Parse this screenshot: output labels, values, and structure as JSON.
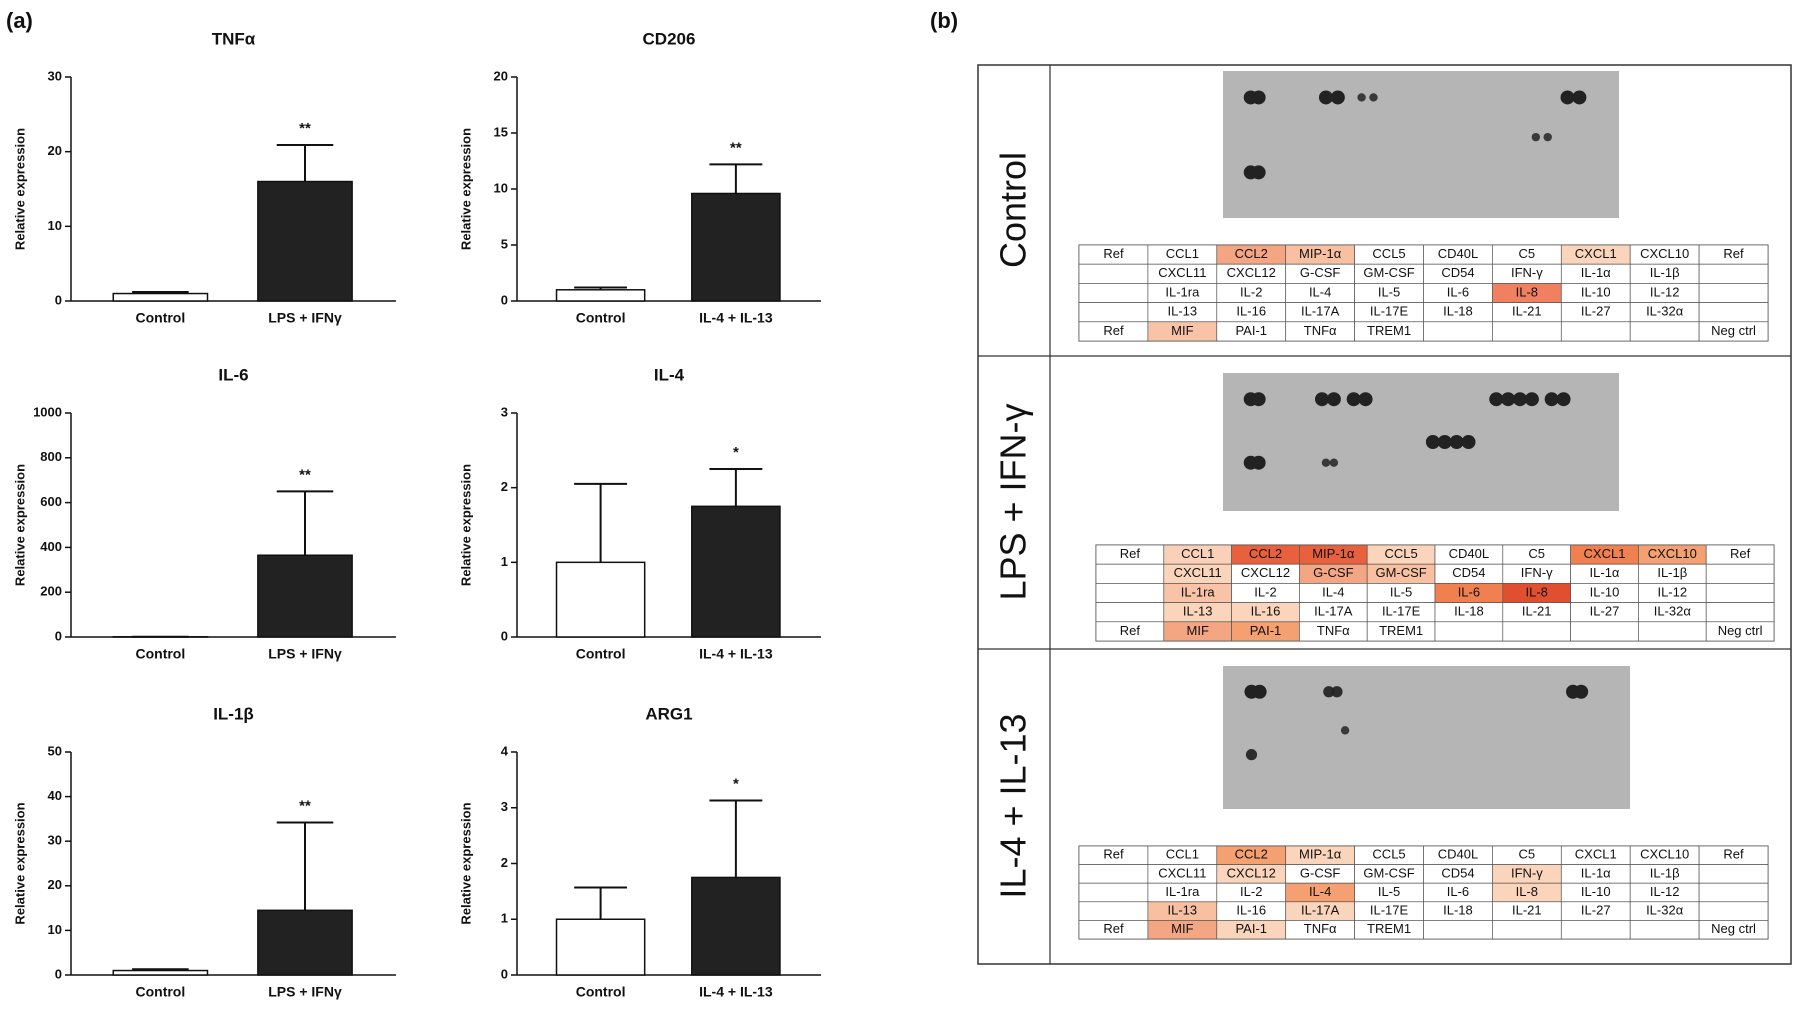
{
  "panel_labels": [
    "(a)",
    "(b)"
  ],
  "chart_data": [
    {
      "type": "bar",
      "title": "TNFα",
      "y_label": "Relative expression",
      "categories": [
        "Control",
        "LPS + IFNγ"
      ],
      "values": [
        1,
        16
      ],
      "errors": [
        0.2,
        4.9
      ],
      "significance": [
        null,
        "**"
      ],
      "colors": [
        "#ffffff",
        "#222222"
      ],
      "ylim": [
        0,
        30
      ],
      "yticks": [
        0,
        10,
        20,
        30
      ]
    },
    {
      "type": "bar",
      "title": "CD206",
      "y_label": "Relative expression",
      "categories": [
        "Control",
        "IL-4 + IL-13"
      ],
      "values": [
        1,
        9.6
      ],
      "errors": [
        0.2,
        2.6
      ],
      "significance": [
        null,
        "**"
      ],
      "colors": [
        "#ffffff",
        "#222222"
      ],
      "ylim": [
        0,
        20
      ],
      "yticks": [
        0,
        5,
        10,
        15,
        20
      ]
    },
    {
      "type": "bar",
      "title": "IL-6",
      "y_label": "Relative expression",
      "categories": [
        "Control",
        "LPS + IFNγ"
      ],
      "values": [
        1,
        365
      ],
      "errors": [
        0.2,
        285
      ],
      "significance": [
        null,
        "**"
      ],
      "colors": [
        "#ffffff",
        "#222222"
      ],
      "ylim": [
        0,
        1000
      ],
      "yticks": [
        0,
        200,
        400,
        600,
        800,
        1000
      ]
    },
    {
      "type": "bar",
      "title": "IL-4",
      "y_label": "Relative expression",
      "categories": [
        "Control",
        "IL-4 + IL-13"
      ],
      "values": [
        1,
        1.75
      ],
      "errors": [
        1.05,
        0.5
      ],
      "significance": [
        null,
        "*"
      ],
      "colors": [
        "#ffffff",
        "#222222"
      ],
      "ylim": [
        0,
        3
      ],
      "yticks": [
        0,
        1,
        2,
        3
      ]
    },
    {
      "type": "bar",
      "title": "IL-1β",
      "y_label": "Relative expression",
      "categories": [
        "Control",
        "LPS + IFNγ"
      ],
      "values": [
        1,
        14.5
      ],
      "errors": [
        0.3,
        19.7
      ],
      "significance": [
        null,
        "**"
      ],
      "colors": [
        "#ffffff",
        "#222222"
      ],
      "ylim": [
        0,
        50
      ],
      "yticks": [
        0,
        10,
        20,
        30,
        40,
        50
      ]
    },
    {
      "type": "bar",
      "title": "ARG1",
      "y_label": "Relative expression",
      "categories": [
        "Control",
        "IL-4 + IL-13"
      ],
      "values": [
        1,
        1.75
      ],
      "errors": [
        0.57,
        1.38
      ],
      "significance": [
        null,
        "*"
      ],
      "colors": [
        "#ffffff",
        "#222222"
      ],
      "ylim": [
        0,
        4
      ],
      "yticks": [
        0,
        1,
        2,
        3,
        4
      ]
    }
  ],
  "array_labels": [
    [
      "Ref",
      "CCL1",
      "CCL2",
      "MIP-1α",
      "CCL5",
      "CD40L",
      "C5",
      "CXCL1",
      "CXCL10",
      "Ref"
    ],
    [
      null,
      "CXCL11",
      "CXCL12",
      "G-CSF",
      "GM-CSF",
      "CD54",
      "IFN-γ",
      "IL-1α",
      "IL-1β",
      null
    ],
    [
      null,
      "IL-1ra",
      "IL-2",
      "IL-4",
      "IL-5",
      "IL-6",
      "IL-8",
      "IL-10",
      "IL-12",
      null
    ],
    [
      null,
      "IL-13",
      "IL-16",
      "IL-17A",
      "IL-17E",
      "IL-18",
      "IL-21",
      "IL-27",
      "IL-32α",
      null
    ],
    [
      "Ref",
      "MIF",
      "PAI-1",
      "TNFα",
      "TREM1",
      null,
      null,
      null,
      null,
      "Neg ctrl"
    ]
  ],
  "arrays": [
    {
      "condition": "Control",
      "cell_colors": [
        [
          null,
          null,
          "#f4a582",
          "#f8c0a0",
          null,
          null,
          null,
          "#fbd5bb",
          null,
          null
        ],
        [
          null,
          null,
          null,
          null,
          null,
          null,
          null,
          null,
          null,
          null
        ],
        [
          null,
          null,
          null,
          null,
          null,
          null,
          "#f08060",
          null,
          null,
          null
        ],
        [
          null,
          null,
          null,
          null,
          null,
          null,
          null,
          null,
          null,
          null
        ],
        [
          null,
          "#f9c3a8",
          null,
          null,
          null,
          null,
          null,
          null,
          null,
          null
        ]
      ]
    },
    {
      "condition": "LPS + IFN-γ",
      "cell_colors": [
        [
          null,
          "#fbd0b8",
          "#e8603c",
          "#e8603c",
          "#fbd5bb",
          null,
          null,
          "#f08050",
          "#f4a070",
          null
        ],
        [
          null,
          "#fbd5bb",
          null,
          "#f4a582",
          "#f8c0a0",
          null,
          null,
          null,
          null,
          null
        ],
        [
          null,
          "#f9c3a8",
          null,
          null,
          null,
          "#f08050",
          "#e05030",
          null,
          null,
          null
        ],
        [
          null,
          "#fbd5bb",
          "#fbd5bb",
          null,
          null,
          null,
          null,
          null,
          null,
          null
        ],
        [
          null,
          "#f4a582",
          "#f4a070",
          null,
          null,
          null,
          null,
          null,
          null,
          null
        ]
      ]
    },
    {
      "condition": "IL-4 + IL-13",
      "cell_colors": [
        [
          null,
          null,
          "#f4a070",
          "#fbd5bb",
          null,
          null,
          null,
          null,
          null,
          null
        ],
        [
          null,
          null,
          "#fbd5bb",
          null,
          null,
          null,
          "#fbd5bb",
          null,
          null,
          null
        ],
        [
          null,
          null,
          null,
          "#f4a070",
          null,
          null,
          "#fbd5bb",
          null,
          null,
          null
        ],
        [
          null,
          "#f8c0a0",
          null,
          "#fbd5bb",
          null,
          null,
          null,
          null,
          null,
          null
        ],
        [
          null,
          "#f4a582",
          "#fbd5bb",
          null,
          null,
          null,
          null,
          null,
          null,
          null
        ]
      ]
    }
  ]
}
